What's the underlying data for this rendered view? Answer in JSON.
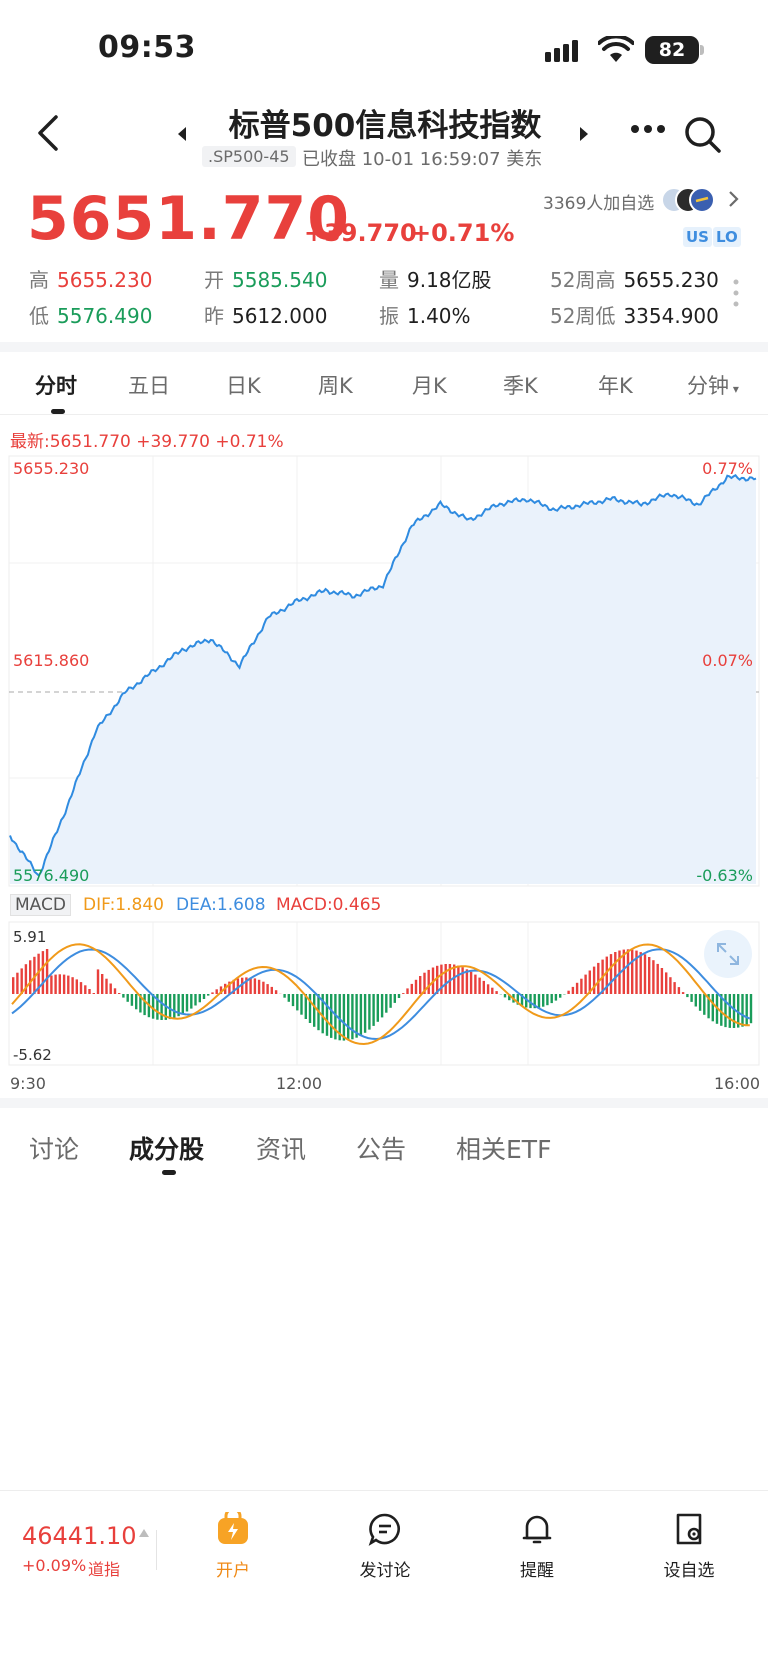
{
  "status_bar": {
    "time": "09:53",
    "battery": "82"
  },
  "header": {
    "title": "标普500信息科技指数",
    "code": ".SP500-45",
    "market_status": "已收盘 10-01 16:59:07 美东"
  },
  "quote": {
    "price": "5651.770",
    "change": "+39.770",
    "change_pct": "+0.71%",
    "followers": "3369人加自选",
    "badges": [
      "US",
      "LO"
    ]
  },
  "stats": {
    "high_label": "高",
    "high": "5655.230",
    "open_label": "开",
    "open": "5585.540",
    "volume_label": "量",
    "volume": "9.18亿股",
    "wk52_high_label": "52周高",
    "wk52_high": "5655.230",
    "low_label": "低",
    "low": "5576.490",
    "prev_close_label": "昨",
    "prev_close": "5612.000",
    "amplitude_label": "振",
    "amplitude": "1.40%",
    "wk52_low_label": "52周低",
    "wk52_low": "3354.900"
  },
  "chart_tabs": [
    "分时",
    "五日",
    "日K",
    "周K",
    "月K",
    "季K",
    "年K",
    "分钟"
  ],
  "chart": {
    "latest": "最新:5651.770 +39.770 +0.71%",
    "y_top": "5655.230",
    "y_mid": "5615.860",
    "y_bottom": "5576.490",
    "pct_top": "0.77%",
    "pct_mid": "0.07%",
    "pct_bottom": "-0.63%",
    "macd_label": "MACD",
    "dif": "DIF:1.840",
    "dea": "DEA:1.608",
    "macd": "MACD:0.465",
    "macd_top": "5.91",
    "macd_bottom": "-5.62",
    "time_start": "9:30",
    "time_mid": "12:00",
    "time_end": "16:00",
    "colors": {
      "line": "#2f8be0",
      "up": "#e8403c",
      "down": "#1a9c5a",
      "dif": "#f09a1a",
      "dea": "#3e8ddf"
    }
  },
  "chart_data": {
    "type": "line",
    "title": "",
    "x": [
      "9:30",
      "9:45",
      "10:00",
      "10:15",
      "10:30",
      "10:45",
      "11:00",
      "11:15",
      "11:30",
      "11:45",
      "12:00",
      "12:15",
      "12:30",
      "12:45",
      "13:00",
      "13:15",
      "13:30",
      "13:45",
      "14:00",
      "14:15",
      "14:30",
      "14:45",
      "15:00",
      "15:15",
      "15:30",
      "15:45",
      "16:00"
    ],
    "series": [
      {
        "values": [
          5585.5,
          5578,
          5591,
          5605,
          5612,
          5616,
          5620,
          5622,
          5617,
          5626,
          5629,
          5631,
          5630,
          5632,
          5643,
          5647,
          5644,
          5647,
          5648,
          5646,
          5647,
          5648,
          5647,
          5649,
          5647,
          5652,
          5651.77
        ]
      }
    ],
    "ylim": [
      5576.49,
      5655.23
    ],
    "xlabel": "",
    "ylabel": ""
  },
  "content_tabs": [
    "讨论",
    "成分股",
    "资讯",
    "公告",
    "相关ETF"
  ],
  "bottom_bar": {
    "dow_value": "46441.10",
    "dow_change": "+0.09%",
    "dow_name": "道指",
    "nav": [
      "开户",
      "发讨论",
      "提醒",
      "设自选"
    ]
  }
}
